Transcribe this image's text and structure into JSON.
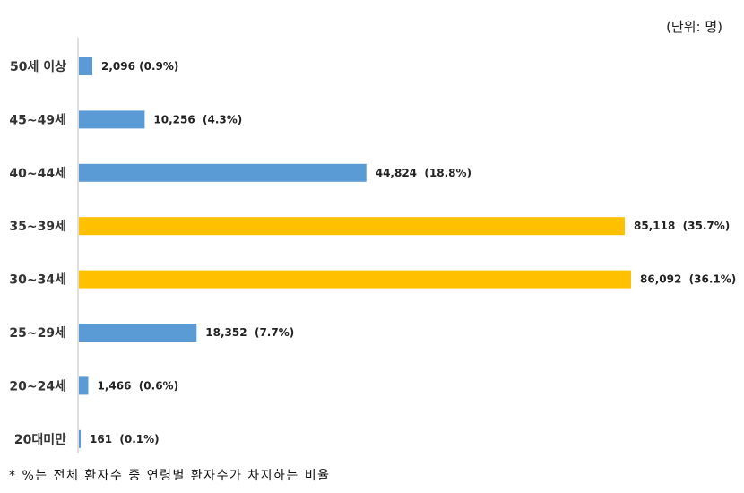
{
  "unit_label": "(단위:  명)",
  "footnote": "* %는 전체 환자수 중 연령별 환자수가 차지하는 비율",
  "colors": {
    "default": "#5b9bd5",
    "highlight": "#ffc000",
    "axis": "#bfbfbf"
  },
  "chart_data": {
    "type": "bar",
    "orientation": "horizontal",
    "title": "",
    "xlabel": "",
    "ylabel": "",
    "xlim": [
      0,
      86092
    ],
    "grid": false,
    "categories": [
      "50세 이상",
      "45~49세",
      "40~44세",
      "35~39세",
      "30~34세",
      "25~29세",
      "20~24세",
      "20대미만"
    ],
    "values": [
      2096,
      10256,
      44824,
      85118,
      86092,
      18352,
      1466,
      161
    ],
    "data_labels": [
      "2,096 (0.9%)",
      "10,256  (4.3%)",
      "44,824  (18.8%)",
      "85,118  (35.7%)",
      "86,092  (36.1%)",
      "18,352  (7.7%)",
      "1,466  (0.6%)",
      "161  (0.1%)"
    ],
    "highlighted": [
      false,
      false,
      false,
      true,
      true,
      false,
      false,
      false
    ]
  }
}
